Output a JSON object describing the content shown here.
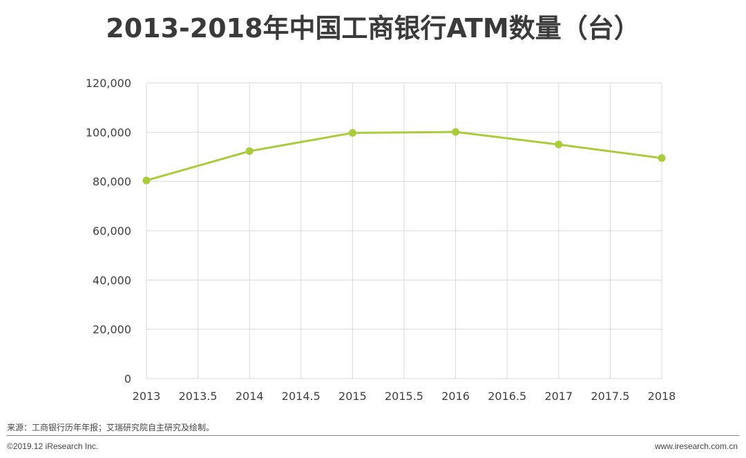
{
  "title": "2013-2018年中国工商银行ATM数量（台）",
  "chart_data": {
    "type": "line",
    "title": "2013-2018年中国工商银行ATM数量（台）",
    "xlabel": "",
    "ylabel": "",
    "xlim": [
      2013,
      2018
    ],
    "ylim": [
      0,
      120000
    ],
    "xticks": [
      "2013",
      "2013.5",
      "2014",
      "2014.5",
      "2015",
      "2015.5",
      "2016",
      "2016.5",
      "2017",
      "2017.5",
      "2018"
    ],
    "yticks": [
      "0",
      "20,000",
      "40,000",
      "60,000",
      "80,000",
      "100,000",
      "120,000"
    ],
    "grid": true,
    "legend": "none",
    "series": [
      {
        "color": "#a9cc3a",
        "x": [
          2013,
          2014,
          2015,
          2016,
          2017,
          2018
        ],
        "values": [
          80400,
          92300,
          99700,
          100100,
          95000,
          89500
        ]
      }
    ]
  },
  "footer": {
    "source": "来源：工商银行历年年报；艾瑞研究院自主研究及绘制。",
    "copyright": "©2019.12 iResearch Inc.",
    "website": "www.iresearch.com.cn"
  },
  "colors": {
    "line": "#a9cc3a",
    "grid": "#d9d9d9",
    "text": "#404040"
  }
}
